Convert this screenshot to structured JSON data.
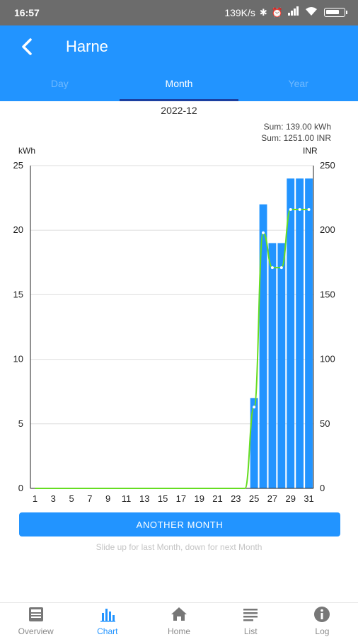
{
  "status_bar": {
    "time": "16:57",
    "network_speed": "139K/s",
    "icons": [
      "bluetooth-icon",
      "alarm-icon",
      "signal-icon",
      "wifi-icon",
      "battery-icon"
    ]
  },
  "app_bar": {
    "title": "Harne",
    "back_icon": "chevron-left-icon"
  },
  "tabs": [
    {
      "label": "Day",
      "active": false
    },
    {
      "label": "Month",
      "active": true
    },
    {
      "label": "Year",
      "active": false
    }
  ],
  "period_label": "2022-12",
  "summary": {
    "energy": "Sum: 139.00 kWh",
    "money": "Sum: 1251.00 INR"
  },
  "chart_data": {
    "type": "bar",
    "x": [
      1,
      2,
      3,
      4,
      5,
      6,
      7,
      8,
      9,
      10,
      11,
      12,
      13,
      14,
      15,
      16,
      17,
      18,
      19,
      20,
      21,
      22,
      23,
      24,
      25,
      26,
      27,
      28,
      29,
      30,
      31
    ],
    "x_tick_labels": [
      "1",
      "3",
      "5",
      "7",
      "9",
      "11",
      "13",
      "15",
      "17",
      "19",
      "21",
      "23",
      "25",
      "27",
      "29",
      "31"
    ],
    "series": [
      {
        "name": "",
        "unit": "kWh",
        "type": "bar",
        "axis": "left",
        "values": [
          0,
          0,
          0,
          0,
          0,
          0,
          0,
          0,
          0,
          0,
          0,
          0,
          0,
          0,
          0,
          0,
          0,
          0,
          0,
          0,
          0,
          0,
          0,
          0,
          7,
          22,
          19,
          19,
          24,
          24,
          24
        ]
      },
      {
        "name": "",
        "unit": "INR",
        "type": "line",
        "axis": "right",
        "values": [
          0,
          0,
          0,
          0,
          0,
          0,
          0,
          0,
          0,
          0,
          0,
          0,
          0,
          0,
          0,
          0,
          0,
          0,
          0,
          0,
          0,
          0,
          0,
          0,
          63,
          198,
          171,
          171,
          216,
          216,
          216
        ]
      }
    ],
    "ylabel_left": "kWh",
    "ylabel_right": "INR",
    "ylim_left": [
      0,
      25
    ],
    "ylim_right": [
      0,
      250
    ],
    "y_ticks_left": [
      0,
      5,
      10,
      15,
      20,
      25
    ],
    "y_ticks_right": [
      0,
      50,
      100,
      150,
      200,
      250
    ],
    "grid": true,
    "colors": {
      "bar": "#2294ff",
      "line": "#66dd22",
      "grid": "#dddddd",
      "axis": "#222222"
    }
  },
  "action_button": {
    "label": "ANOTHER MONTH"
  },
  "hint": "Slide up for last Month, down for next Month",
  "bottom_nav": [
    {
      "label": "Overview",
      "icon": "newspaper-icon",
      "active": false
    },
    {
      "label": "Chart",
      "icon": "bar-chart-icon",
      "active": true
    },
    {
      "label": "Home",
      "icon": "home-icon",
      "active": false
    },
    {
      "label": "List",
      "icon": "list-icon",
      "active": false
    },
    {
      "label": "Log",
      "icon": "info-icon",
      "active": false
    }
  ],
  "colors": {
    "primary": "#2294ff",
    "tab_indicator": "#1b3fa0",
    "status_bar": "#6c6c6c"
  }
}
